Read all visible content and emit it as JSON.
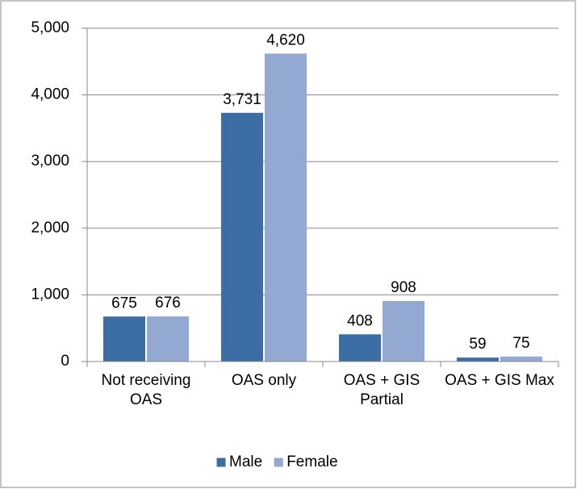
{
  "chart_data": {
    "type": "bar",
    "categories": [
      "Not receiving OAS",
      "OAS only",
      "OAS + GIS Partial",
      "OAS + GIS Max"
    ],
    "series": [
      {
        "name": "Male",
        "color": "#3c6ea5",
        "values": [
          675,
          3731,
          408,
          59
        ],
        "value_labels": [
          "675",
          "3,731",
          "408",
          "59"
        ]
      },
      {
        "name": "Female",
        "color": "#94a9d1",
        "values": [
          676,
          4620,
          908,
          75
        ],
        "value_labels": [
          "676",
          "4,620",
          "908",
          "75"
        ]
      }
    ],
    "ylim": [
      0,
      5000
    ],
    "yticks": [
      0,
      {
        "value": 1000,
        "label": "1,000"
      },
      {
        "value": 2000,
        "label": "2,000"
      },
      {
        "value": 3000,
        "label": "3,000"
      },
      {
        "value": 4000,
        "label": "4,000"
      },
      {
        "value": 5000,
        "label": "5,000"
      }
    ],
    "grid": true,
    "legend": "bottom"
  }
}
